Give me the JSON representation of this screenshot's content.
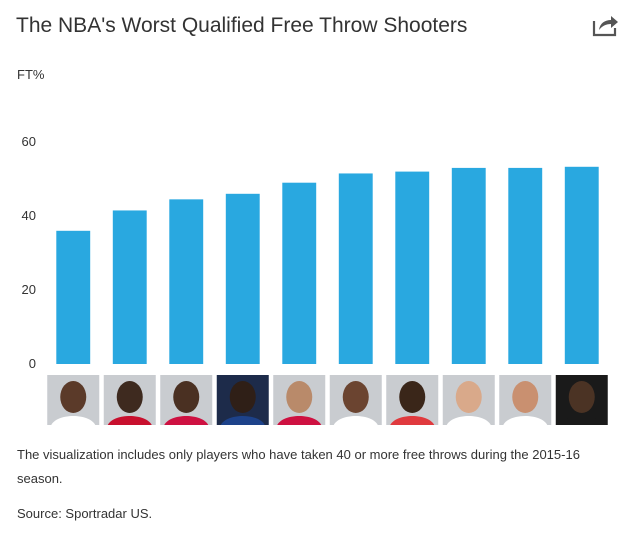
{
  "title": "The NBA's Worst Qualified Free Throw Shooters",
  "caption": "The visualization includes only players who have taken 40 or more free throws during the 2015-16 season.",
  "source": "Source: Sportradar US.",
  "icons": {
    "share": "share-icon"
  },
  "colors": {
    "bar": "#29a8e0",
    "text": "#333333",
    "axis": "#cccccc"
  },
  "chart_data": {
    "type": "bar",
    "title": "",
    "xlabel": "",
    "ylabel": "FT%",
    "ylim": [
      0,
      60
    ],
    "yticks": [
      0,
      20,
      40,
      60
    ],
    "grid": false,
    "categories": [
      "",
      "",
      "",
      "",
      "",
      "",
      "",
      "",
      "",
      ""
    ],
    "values": [
      36,
      41.5,
      44.5,
      46,
      49,
      51.5,
      52,
      53,
      53,
      53.3
    ],
    "category_images": "player headshot photos"
  }
}
